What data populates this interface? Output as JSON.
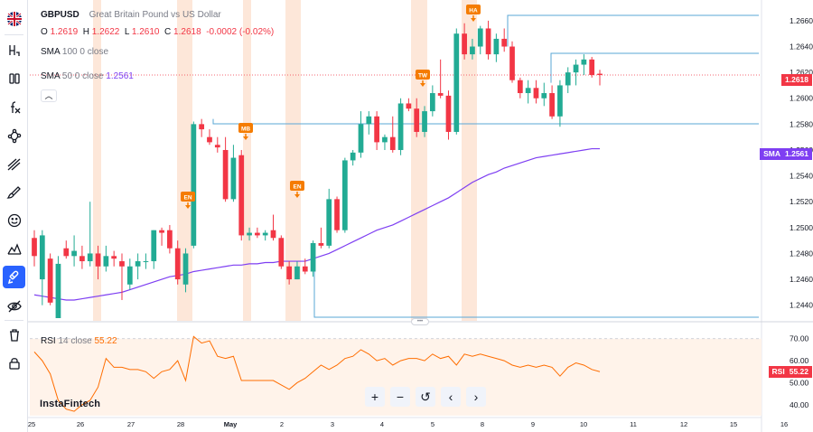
{
  "symbol": {
    "ticker": "GBPUSD",
    "description": "Great Britain Pound vs US Dollar",
    "flag_icon": "union-jack-flag-icon"
  },
  "ohlc": {
    "o_label": "O",
    "o_value": "1.2619",
    "h_label": "H",
    "h_value": "1.2622",
    "l_label": "L",
    "l_value": "1.2610",
    "c_label": "C",
    "c_value": "1.2618",
    "change": "-0.0002 (-0.02%)"
  },
  "indicators": {
    "sma100": {
      "name": "SMA",
      "params": "100 0 close"
    },
    "sma50": {
      "name": "SMA",
      "params": "50 0 close",
      "value": "1.2561"
    },
    "rsi": {
      "name": "RSI",
      "params": "14 close",
      "value": "55.22"
    }
  },
  "price_axis": {
    "ticks": [
      "1.2660",
      "1.2640",
      "1.2620",
      "1.2600",
      "1.2580",
      "1.2560",
      "1.2540",
      "1.2520",
      "1.2500",
      "1.2480",
      "1.2460",
      "1.2440"
    ],
    "last_price_badge": "1.2618",
    "sma_badge": {
      "label": "SMA",
      "value": "1.2561"
    }
  },
  "rsi_axis": {
    "ticks": [
      "70.00",
      "60.00",
      "50.00",
      "40.00"
    ],
    "rsi_badge": {
      "label": "RSI",
      "value": "55.22"
    }
  },
  "time_axis": {
    "labels": [
      "25",
      "26",
      "27",
      "28",
      "May",
      "2",
      "3",
      "4",
      "5",
      "8",
      "9",
      "10",
      "11",
      "12",
      "15",
      "16"
    ]
  },
  "event_markers": [
    "EN",
    "MB",
    "EN",
    "TW",
    "HA"
  ],
  "navigation": {
    "zoom_in": "+",
    "zoom_out": "−",
    "reset": "↺",
    "scroll_left": "‹",
    "scroll_right": "›"
  },
  "watermark": "InstaFintech",
  "toolbar_icons": [
    "flag-icon",
    "text-tool-icon",
    "measure-icon",
    "fx-icon",
    "trend-line-icon",
    "fib-tool-icon",
    "brush-icon",
    "emoji-icon",
    "pattern-icon",
    "magnet-icon",
    "eye-hide-icon",
    "trash-icon",
    "lock-icon"
  ],
  "colors": {
    "up": "#22ab94",
    "down": "#f23645",
    "sma50": "#7e3ff2",
    "rsi": "#ff6d00",
    "levels": "#5aa7d6",
    "event_band": "#fde3d2",
    "marker": "#f57c00"
  },
  "chart_data": {
    "type": "candlestick",
    "series": [
      {
        "name": "GBPUSD",
        "ohlc": [
          [
            1.2492,
            1.2498,
            1.247,
            1.2478
          ],
          [
            1.246,
            1.2498,
            1.244,
            1.2494
          ],
          [
            1.2476,
            1.248,
            1.244,
            1.2442
          ],
          [
            1.243,
            1.2478,
            1.243,
            1.2472
          ],
          [
            1.2484,
            1.249,
            1.2476,
            1.2478
          ],
          [
            1.2478,
            1.2494,
            1.247,
            1.2482
          ],
          [
            1.2478,
            1.2486,
            1.2468,
            1.2474
          ],
          [
            1.2474,
            1.252,
            1.247,
            1.248
          ],
          [
            1.248,
            1.2486,
            1.246,
            1.247
          ],
          [
            1.247,
            1.2486,
            1.2466,
            1.2478
          ],
          [
            1.2478,
            1.2482,
            1.247,
            1.2476
          ],
          [
            1.2474,
            1.248,
            1.2444,
            1.247
          ],
          [
            1.2456,
            1.2476,
            1.2452,
            1.247
          ],
          [
            1.247,
            1.248,
            1.246,
            1.2474
          ],
          [
            1.2474,
            1.248,
            1.2468,
            1.2474
          ],
          [
            1.2474,
            1.2498,
            1.2468,
            1.2498
          ],
          [
            1.2498,
            1.25,
            1.2486,
            1.2496
          ],
          [
            1.2498,
            1.2502,
            1.248,
            1.2484
          ],
          [
            1.2484,
            1.249,
            1.2456,
            1.246
          ],
          [
            1.2456,
            1.2484,
            1.245,
            1.248
          ],
          [
            1.2486,
            1.2582,
            1.2484,
            1.258
          ],
          [
            1.258,
            1.2584,
            1.257,
            1.2576
          ],
          [
            1.257,
            1.2576,
            1.2564,
            1.2566
          ],
          [
            1.2564,
            1.257,
            1.2558,
            1.2562
          ],
          [
            1.256,
            1.257,
            1.252,
            1.2522
          ],
          [
            1.2522,
            1.2564,
            1.252,
            1.2554
          ],
          [
            1.2556,
            1.256,
            1.249,
            1.2494
          ],
          [
            1.2494,
            1.25,
            1.249,
            1.2496
          ],
          [
            1.2496,
            1.25,
            1.2492,
            1.2494
          ],
          [
            1.2494,
            1.2498,
            1.249,
            1.2496
          ],
          [
            1.2498,
            1.251,
            1.249,
            1.2492
          ],
          [
            1.2492,
            1.2494,
            1.2468,
            1.247
          ],
          [
            1.247,
            1.2474,
            1.2456,
            1.246
          ],
          [
            1.246,
            1.2474,
            1.246,
            1.247
          ],
          [
            1.247,
            1.2476,
            1.2464,
            1.2466
          ],
          [
            1.2466,
            1.249,
            1.2462,
            1.2488
          ],
          [
            1.2488,
            1.25,
            1.2484,
            1.2486
          ],
          [
            1.2486,
            1.253,
            1.2484,
            1.2522
          ],
          [
            1.2522,
            1.2524,
            1.2496,
            1.2498
          ],
          [
            1.2498,
            1.2554,
            1.2496,
            1.2552
          ],
          [
            1.2552,
            1.256,
            1.2548,
            1.2558
          ],
          [
            1.2558,
            1.259,
            1.2554,
            1.258
          ],
          [
            1.258,
            1.259,
            1.2572,
            1.2586
          ],
          [
            1.2586,
            1.259,
            1.256,
            1.2566
          ],
          [
            1.2566,
            1.2572,
            1.256,
            1.257
          ],
          [
            1.257,
            1.2586,
            1.2558,
            1.256
          ],
          [
            1.256,
            1.26,
            1.2556,
            1.2596
          ],
          [
            1.2596,
            1.26,
            1.259,
            1.2592
          ],
          [
            1.2592,
            1.26,
            1.257,
            1.2574
          ],
          [
            1.2574,
            1.2594,
            1.257,
            1.259
          ],
          [
            1.259,
            1.261,
            1.2586,
            1.2604
          ],
          [
            1.2604,
            1.263,
            1.26,
            1.2602
          ],
          [
            1.2602,
            1.2606,
            1.2568,
            1.2574
          ],
          [
            1.2574,
            1.2654,
            1.2572,
            1.265
          ],
          [
            1.265,
            1.2658,
            1.263,
            1.2634
          ],
          [
            1.2634,
            1.2646,
            1.263,
            1.264
          ],
          [
            1.264,
            1.2656,
            1.2634,
            1.2654
          ],
          [
            1.2654,
            1.266,
            1.263,
            1.2634
          ],
          [
            1.2634,
            1.265,
            1.2628,
            1.2646
          ],
          [
            1.2646,
            1.2654,
            1.2636,
            1.264
          ],
          [
            1.264,
            1.2644,
            1.2612,
            1.2614
          ],
          [
            1.2614,
            1.2616,
            1.26,
            1.2604
          ],
          [
            1.2604,
            1.2614,
            1.2596,
            1.2608
          ],
          [
            1.2608,
            1.2614,
            1.2596,
            1.26
          ],
          [
            1.26,
            1.2612,
            1.2594,
            1.2604
          ],
          [
            1.2604,
            1.261,
            1.2584,
            1.2586
          ],
          [
            1.2586,
            1.2614,
            1.2578,
            1.261
          ],
          [
            1.261,
            1.2624,
            1.2604,
            1.262
          ],
          [
            1.262,
            1.263,
            1.261,
            1.2626
          ],
          [
            1.2626,
            1.2634,
            1.2618,
            1.263
          ],
          [
            1.263,
            1.2632,
            1.2616,
            1.2618
          ],
          [
            1.2619,
            1.2622,
            1.261,
            1.2618
          ]
        ]
      },
      {
        "name": "SMA 50",
        "values": [
          1.2448,
          1.2447,
          1.2446,
          1.2445,
          1.2444,
          1.2444,
          1.2445,
          1.2446,
          1.2447,
          1.2448,
          1.2449,
          1.245,
          1.2452,
          1.2454,
          1.2456,
          1.2458,
          1.246,
          1.2462,
          1.2463,
          1.2464,
          1.2466,
          1.2467,
          1.2468,
          1.2469,
          1.247,
          1.2471,
          1.2471,
          1.2472,
          1.2472,
          1.2473,
          1.2473,
          1.2474,
          1.2474,
          1.2474,
          1.2474,
          1.2476,
          1.2478,
          1.248,
          1.2483,
          1.2486,
          1.2489,
          1.2492,
          1.2495,
          1.2498,
          1.25,
          1.2502,
          1.2505,
          1.2508,
          1.2511,
          1.2514,
          1.2517,
          1.252,
          1.2523,
          1.2527,
          1.2531,
          1.2535,
          1.2538,
          1.2541,
          1.2543,
          1.2546,
          1.2548,
          1.255,
          1.2552,
          1.2554,
          1.2555,
          1.2556,
          1.2557,
          1.2558,
          1.2559,
          1.256,
          1.2561,
          1.2561
        ]
      },
      {
        "name": "RSI 14",
        "values": [
          64,
          60,
          54,
          42,
          38,
          37,
          40,
          42,
          48,
          61,
          57,
          57,
          56,
          56,
          55,
          52,
          55,
          56,
          60,
          51,
          71,
          68,
          69,
          62,
          61,
          62,
          51,
          51,
          51,
          51,
          51,
          49,
          47,
          50,
          52,
          55,
          58,
          56,
          58,
          61,
          62,
          65,
          63,
          60,
          61,
          58,
          60,
          61,
          61,
          60,
          63,
          61,
          62,
          58,
          63,
          62,
          63,
          62,
          61,
          60,
          58,
          57,
          58,
          57,
          58,
          57,
          53,
          57,
          59,
          58,
          56,
          55
        ]
      }
    ],
    "price_range": [
      1.243,
      1.2676
    ],
    "rsi_range": [
      35,
      74
    ],
    "levels": [
      1.2584,
      1.2638,
      1.2668,
      1.2436
    ],
    "rsi_bands": [
      30,
      70
    ],
    "last_price": 1.2618,
    "grid": false
  }
}
